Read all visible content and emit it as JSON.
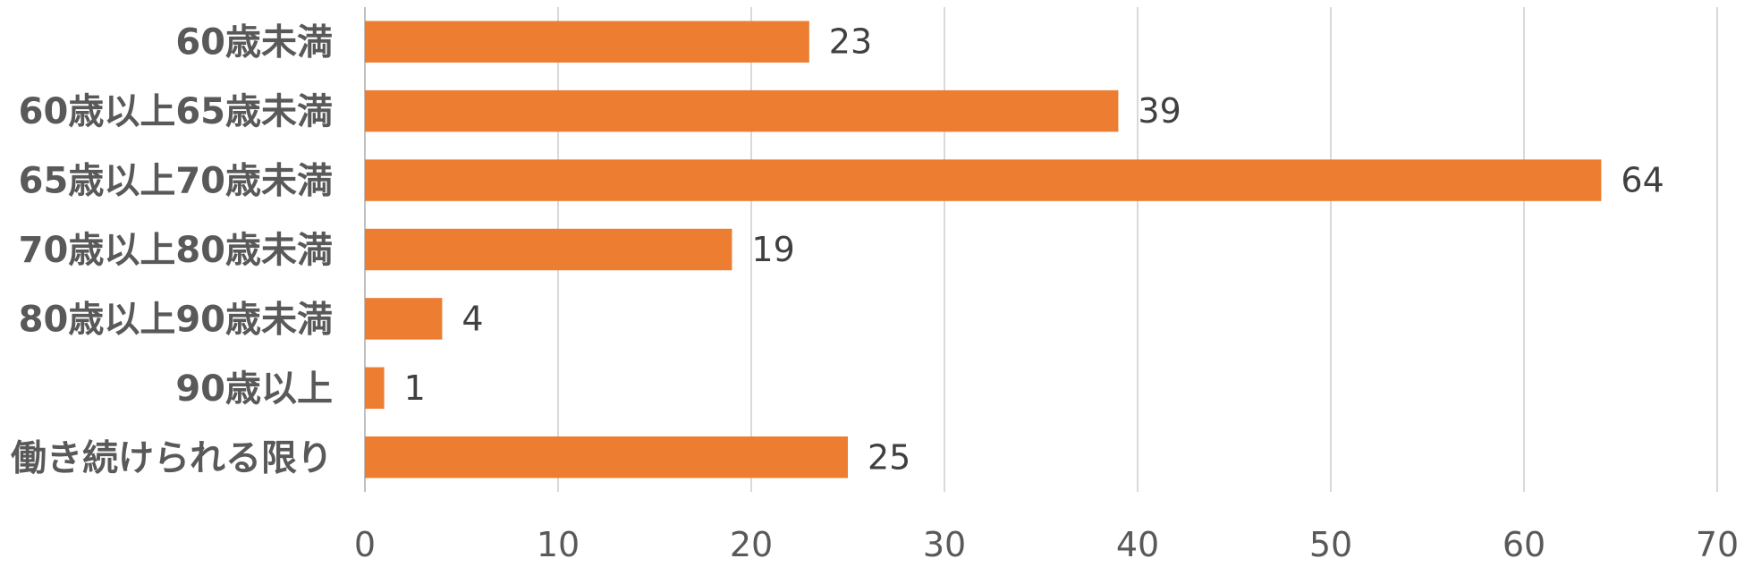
{
  "chart_data": {
    "type": "bar",
    "orientation": "horizontal",
    "title": "",
    "xlabel": "",
    "ylabel": "",
    "categories": [
      "60歳未満",
      "60歳以上65歳未満",
      "65歳以上70歳未満",
      "70歳以上80歳未満",
      "80歳以上90歳未満",
      "90歳以上",
      "働き続けられる限り"
    ],
    "values": [
      23,
      39,
      64,
      19,
      4,
      1,
      25
    ],
    "xlim": [
      0,
      70
    ],
    "xticks": [
      0,
      10,
      20,
      30,
      40,
      50,
      60,
      70
    ],
    "grid": true,
    "legend": "none",
    "bar_color": "#ED7D31"
  }
}
